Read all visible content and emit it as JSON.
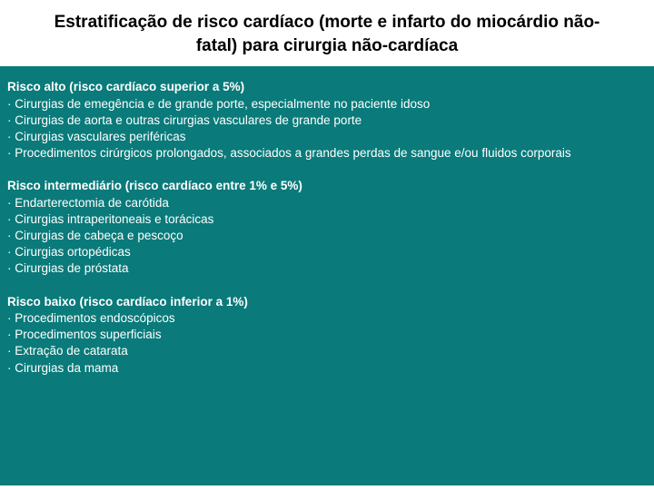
{
  "colors": {
    "header_bg": "#ffffff",
    "header_text": "#000000",
    "content_bg": "#0a7a7a",
    "content_text": "#ffffff"
  },
  "typography": {
    "title_fontsize": 19,
    "body_fontsize": 13.5,
    "font_family": "Arial"
  },
  "title": "Estratificação de risco cardíaco (morte e infarto do miocárdio não-fatal) para cirurgia não-cardíaca",
  "sections": [
    {
      "heading": "Risco alto (risco cardíaco superior a 5%)",
      "items": [
        "· Cirurgias de emegência e de grande porte, especialmente no paciente idoso",
        "· Cirurgias de aorta e outras cirurgias vasculares de grande porte",
        "· Cirurgias vasculares periféricas",
        "· Procedimentos cirúrgicos prolongados, associados a grandes perdas de sangue e/ou fluidos corporais"
      ]
    },
    {
      "heading": "Risco intermediário (risco cardíaco entre 1% e 5%)",
      "items": [
        "· Endarterectomia de carótida",
        "· Cirurgias intraperitoneais e torácicas",
        "· Cirurgias de cabeça e pescoço",
        "· Cirurgias ortopédicas",
        "· Cirurgias de próstata"
      ]
    },
    {
      "heading": "Risco baixo (risco cardíaco inferior a 1%)",
      "items": [
        "· Procedimentos endoscópicos",
        "· Procedimentos superficiais",
        "· Extração de catarata",
        "· Cirurgias da mama"
      ]
    }
  ]
}
